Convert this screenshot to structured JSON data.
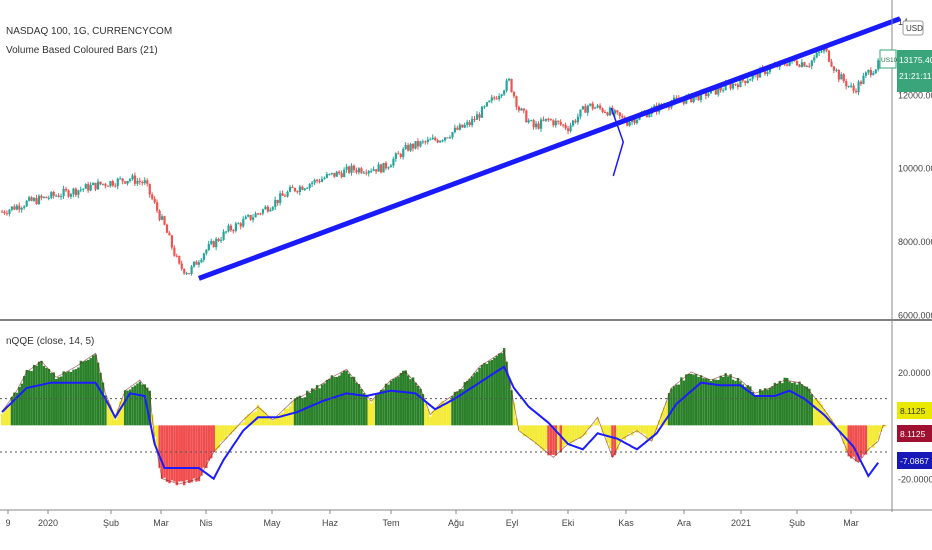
{
  "header": {
    "symbol_title": "NASDAQ 100, 1G, CURRENCYCOM",
    "indicator_title": "Volume Based Coloured Bars (21)",
    "currency_badge": "USD"
  },
  "oscillator_header": {
    "title": "nQQE (close, 14, 5)"
  },
  "price_axis": {
    "ticks": [
      "14000.0000",
      "12000.0000",
      "10000.0000",
      "8000.0000",
      "6000.0000"
    ],
    "ticks_display": [
      "14",
      "12000.0000",
      "10000.0000",
      "8000.0000",
      "6000.0000"
    ],
    "badge_symbol": "US100",
    "badge_price": "13175.4000",
    "badge_time": "21:21:11"
  },
  "osc_axis": {
    "ticks": [
      "20.0000",
      "-20.0000"
    ],
    "badge_yellow": "8.1125",
    "badge_red": "8.1125",
    "badge_blue": "-7.0867"
  },
  "time_axis": {
    "labels": [
      "9",
      "2020",
      "Şub",
      "Mar",
      "Nis",
      "May",
      "Haz",
      "Tem",
      "Ağu",
      "Eyl",
      "Eki",
      "Kas",
      "Ara",
      "2021",
      "Şub",
      "Mar"
    ]
  },
  "colors": {
    "bull": "#26a69a",
    "bear": "#ef5350",
    "trendline": "#1a1aff",
    "qqe_green": "#1f7a1f",
    "qqe_yellow": "#f2ea2a",
    "qqe_red": "#ef4545",
    "qqe_line": "#1c1cff",
    "badge_green": "#3aa57a",
    "badge_yellow": "#e8e800",
    "badge_red": "#a01030",
    "badge_blue": "#1818b8"
  },
  "chart_data": [
    {
      "type": "candlestick",
      "title": "NASDAQ 100, 1G, CURRENCYCOM",
      "subtitle": "Volume Based Coloured Bars (21)",
      "ylim": [
        5900,
        14300
      ],
      "anchors": [
        [
          0,
          8800
        ],
        [
          10,
          9050
        ],
        [
          25,
          9300
        ],
        [
          40,
          9550
        ],
        [
          52,
          9700
        ],
        [
          58,
          9580
        ],
        [
          66,
          8400
        ],
        [
          72,
          7300
        ],
        [
          76,
          7150
        ],
        [
          82,
          7700
        ],
        [
          92,
          8300
        ],
        [
          105,
          8800
        ],
        [
          118,
          9400
        ],
        [
          132,
          9750
        ],
        [
          142,
          9950
        ],
        [
          155,
          10000
        ],
        [
          165,
          10550
        ],
        [
          178,
          10800
        ],
        [
          190,
          11200
        ],
        [
          196,
          11600
        ],
        [
          200,
          11900
        ],
        [
          206,
          12350
        ],
        [
          210,
          11600
        ],
        [
          216,
          11100
        ],
        [
          222,
          11300
        ],
        [
          230,
          11100
        ],
        [
          238,
          11700
        ],
        [
          246,
          11550
        ],
        [
          254,
          11250
        ],
        [
          262,
          11500
        ],
        [
          270,
          11750
        ],
        [
          280,
          11900
        ],
        [
          290,
          12100
        ],
        [
          300,
          12350
        ],
        [
          310,
          12650
        ],
        [
          320,
          12900
        ],
        [
          328,
          12850
        ],
        [
          334,
          13250
        ],
        [
          340,
          12500
        ],
        [
          346,
          12100
        ],
        [
          352,
          12600
        ],
        [
          358,
          12900
        ]
      ],
      "trendline": {
        "from": [
          80,
          6980
        ],
        "to": [
          360,
          13900
        ]
      },
      "marker_x": [
        250,
        10700
      ]
    },
    {
      "type": "area",
      "title": "nQQE (close, 14, 5)",
      "ylim": [
        -28,
        32
      ],
      "levels": [
        10,
        -10
      ],
      "rsi_anchors": [
        [
          0,
          5
        ],
        [
          6,
          13
        ],
        [
          10,
          20
        ],
        [
          16,
          24
        ],
        [
          22,
          18
        ],
        [
          30,
          22
        ],
        [
          38,
          27
        ],
        [
          42,
          12
        ],
        [
          46,
          3
        ],
        [
          50,
          13
        ],
        [
          56,
          17
        ],
        [
          60,
          12
        ],
        [
          62,
          -5
        ],
        [
          65,
          -20
        ],
        [
          72,
          -22
        ],
        [
          80,
          -20
        ],
        [
          86,
          -10
        ],
        [
          92,
          -4
        ],
        [
          98,
          2
        ],
        [
          104,
          7
        ],
        [
          110,
          2
        ],
        [
          118,
          9
        ],
        [
          126,
          13
        ],
        [
          134,
          18
        ],
        [
          140,
          21
        ],
        [
          145,
          15
        ],
        [
          150,
          9
        ],
        [
          158,
          17
        ],
        [
          164,
          20
        ],
        [
          170,
          14
        ],
        [
          174,
          4
        ],
        [
          178,
          8
        ],
        [
          186,
          13
        ],
        [
          194,
          22
        ],
        [
          204,
          28
        ],
        [
          210,
          -2
        ],
        [
          216,
          -6
        ],
        [
          224,
          -12
        ],
        [
          230,
          -7
        ],
        [
          236,
          -4
        ],
        [
          242,
          3
        ],
        [
          248,
          -12
        ],
        [
          252,
          -5
        ],
        [
          258,
          -2
        ],
        [
          264,
          -6
        ],
        [
          272,
          14
        ],
        [
          280,
          20
        ],
        [
          288,
          17
        ],
        [
          294,
          19
        ],
        [
          300,
          17
        ],
        [
          306,
          12
        ],
        [
          312,
          14
        ],
        [
          318,
          17
        ],
        [
          324,
          16
        ],
        [
          328,
          13
        ],
        [
          334,
          6
        ],
        [
          340,
          -2
        ],
        [
          344,
          -11
        ],
        [
          348,
          -14
        ],
        [
          352,
          -9
        ],
        [
          356,
          -6
        ],
        [
          358,
          0
        ]
      ],
      "qqe_line_anchors": [
        [
          0,
          5
        ],
        [
          10,
          14
        ],
        [
          20,
          16
        ],
        [
          38,
          16
        ],
        [
          42,
          10
        ],
        [
          46,
          3
        ],
        [
          52,
          12
        ],
        [
          58,
          11
        ],
        [
          62,
          -7
        ],
        [
          66,
          -16
        ],
        [
          80,
          -16
        ],
        [
          86,
          -20
        ],
        [
          90,
          -13
        ],
        [
          98,
          -2
        ],
        [
          104,
          3
        ],
        [
          112,
          3
        ],
        [
          120,
          5
        ],
        [
          130,
          9
        ],
        [
          140,
          12
        ],
        [
          148,
          11
        ],
        [
          158,
          13
        ],
        [
          168,
          12
        ],
        [
          176,
          6
        ],
        [
          184,
          10
        ],
        [
          194,
          16
        ],
        [
          204,
          22
        ],
        [
          208,
          14
        ],
        [
          214,
          7
        ],
        [
          222,
          1
        ],
        [
          230,
          -7
        ],
        [
          236,
          -9
        ],
        [
          242,
          -3
        ],
        [
          250,
          -5
        ],
        [
          258,
          -9
        ],
        [
          266,
          -3
        ],
        [
          274,
          8
        ],
        [
          284,
          16
        ],
        [
          292,
          15
        ],
        [
          300,
          15
        ],
        [
          306,
          11
        ],
        [
          314,
          11
        ],
        [
          320,
          13
        ],
        [
          326,
          10
        ],
        [
          334,
          4
        ],
        [
          340,
          -2
        ],
        [
          346,
          -8
        ],
        [
          352,
          -19
        ],
        [
          356,
          -14
        ]
      ]
    }
  ]
}
